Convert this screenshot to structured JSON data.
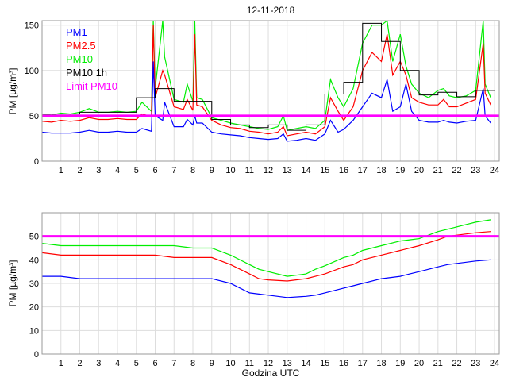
{
  "title": "12-11-2018",
  "colors": {
    "PM1": "#0000ff",
    "PM2.5": "#ff0000",
    "PM10": "#00ee00",
    "PM10 1h": "#000000",
    "Limit PM10": "#ff00ff",
    "grid": "#dddddd"
  },
  "chart_data": [
    {
      "type": "line",
      "title": "12-11-2018",
      "xlabel": "",
      "ylabel": "PM [µg/m³]",
      "xlim": [
        0,
        24.25
      ],
      "ylim": [
        0,
        155
      ],
      "xticks": [
        1,
        2,
        3,
        4,
        5,
        6,
        7,
        8,
        9,
        10,
        11,
        12,
        13,
        14,
        15,
        16,
        17,
        18,
        19,
        20,
        21,
        22,
        23,
        24
      ],
      "yticks": [
        0,
        50,
        100,
        150
      ],
      "grid": true,
      "legend": {
        "placement": "top-left",
        "entries": [
          "PM1",
          "PM2.5",
          "PM10",
          "PM10 1h",
          "Limit PM10"
        ]
      },
      "x": [
        0,
        0.5,
        1,
        1.5,
        2,
        2.5,
        3,
        3.5,
        4,
        4.5,
        5,
        5.3,
        5.8,
        5.9,
        6.0,
        6.4,
        6.5,
        7,
        7.5,
        7.7,
        8,
        8.1,
        8.2,
        8.5,
        9,
        9.5,
        10,
        10.5,
        11,
        11.5,
        12,
        12.5,
        12.8,
        13,
        13.5,
        14,
        14.5,
        15,
        15.3,
        15.7,
        16,
        16.5,
        17,
        17.5,
        18,
        18.3,
        18.6,
        19,
        19.3,
        19.6,
        20,
        20.5,
        21,
        21.3,
        21.6,
        22,
        22.5,
        23,
        23.4,
        23.5,
        23.8
      ],
      "series": [
        {
          "name": "PM1",
          "values": [
            32,
            31,
            31,
            31,
            32,
            34,
            32,
            32,
            33,
            32,
            32,
            36,
            33,
            110,
            50,
            45,
            65,
            38,
            38,
            46,
            40,
            50,
            42,
            42,
            32,
            30,
            29,
            28,
            26,
            25,
            24,
            25,
            30,
            22,
            23,
            25,
            23,
            30,
            45,
            32,
            35,
            45,
            60,
            75,
            70,
            90,
            55,
            60,
            85,
            55,
            45,
            43,
            43,
            45,
            43,
            42,
            44,
            45,
            80,
            50,
            42
          ]
        },
        {
          "name": "PM2.5",
          "values": [
            44,
            43,
            45,
            44,
            45,
            48,
            46,
            46,
            47,
            46,
            46,
            52,
            49,
            150,
            70,
            100,
            95,
            60,
            57,
            68,
            56,
            140,
            62,
            60,
            45,
            40,
            37,
            36,
            33,
            32,
            30,
            32,
            38,
            28,
            30,
            32,
            30,
            38,
            70,
            55,
            45,
            60,
            100,
            120,
            110,
            140,
            95,
            110,
            95,
            70,
            65,
            62,
            62,
            68,
            60,
            60,
            64,
            68,
            130,
            75,
            62
          ]
        },
        {
          "name": "PM10",
          "values": [
            52,
            51,
            53,
            52,
            54,
            58,
            54,
            54,
            55,
            54,
            55,
            65,
            55,
            155,
            80,
            155,
            115,
            68,
            65,
            85,
            66,
            155,
            70,
            68,
            48,
            45,
            42,
            40,
            38,
            36,
            35,
            38,
            50,
            34,
            36,
            38,
            36,
            45,
            90,
            70,
            60,
            80,
            130,
            150,
            150,
            155,
            110,
            140,
            105,
            85,
            75,
            70,
            78,
            80,
            72,
            70,
            72,
            78,
            155,
            85,
            70
          ]
        }
      ],
      "hourly": {
        "name": "PM10 1h",
        "hours": [
          0,
          1,
          2,
          3,
          4,
          5,
          6,
          7,
          8,
          9,
          10,
          11,
          12,
          13,
          14,
          15,
          16,
          17,
          18,
          19,
          20,
          21,
          22,
          23
        ],
        "values": [
          52,
          52,
          54,
          54,
          54,
          70,
          80,
          66,
          66,
          46,
          40,
          37,
          40,
          34,
          40,
          74,
          87,
          152,
          132,
          100,
          73,
          76,
          71,
          78
        ]
      },
      "limit": {
        "name": "Limit PM10",
        "value": 50
      }
    },
    {
      "type": "line",
      "xlabel": "Godzina UTC",
      "ylabel": "PM [µg/m³]",
      "xlim": [
        0,
        24.25
      ],
      "ylim": [
        0,
        60
      ],
      "xticks": [
        1,
        2,
        3,
        4,
        5,
        6,
        7,
        8,
        9,
        10,
        11,
        12,
        13,
        14,
        15,
        16,
        17,
        18,
        19,
        20,
        21,
        22,
        23,
        24
      ],
      "yticks": [
        0,
        10,
        20,
        30,
        40,
        50
      ],
      "grid": true,
      "x": [
        0,
        1,
        2,
        3,
        4,
        5,
        6,
        7,
        8,
        9,
        10,
        11,
        11.5,
        12,
        13,
        14,
        14.5,
        15,
        16,
        16.5,
        17,
        18,
        19,
        19.5,
        20,
        21,
        21.5,
        22,
        23,
        23.8
      ],
      "series": [
        {
          "name": "PM1",
          "values": [
            33,
            33,
            32,
            32,
            32,
            32,
            32,
            32,
            32,
            32,
            30,
            26,
            25.5,
            25,
            24,
            24.5,
            25,
            26,
            28,
            29,
            30,
            32,
            33,
            34,
            35,
            37,
            38,
            38.5,
            39.5,
            40
          ]
        },
        {
          "name": "PM2.5",
          "values": [
            43,
            42,
            42,
            42,
            42,
            42,
            42,
            41,
            41,
            41,
            38,
            34,
            32,
            31.5,
            31,
            32,
            33,
            34,
            37,
            38,
            40,
            42,
            44,
            45,
            46,
            48.5,
            50,
            50.5,
            51.5,
            52
          ]
        },
        {
          "name": "PM10",
          "values": [
            47,
            46,
            46,
            46,
            46,
            46,
            46,
            46,
            45,
            45,
            42,
            38,
            36,
            35,
            33,
            34,
            36,
            37.5,
            41,
            42,
            44,
            46,
            48,
            48.5,
            49,
            52,
            53,
            54,
            56,
            57
          ]
        }
      ],
      "limit": {
        "name": "Limit PM10",
        "value": 50
      }
    }
  ]
}
